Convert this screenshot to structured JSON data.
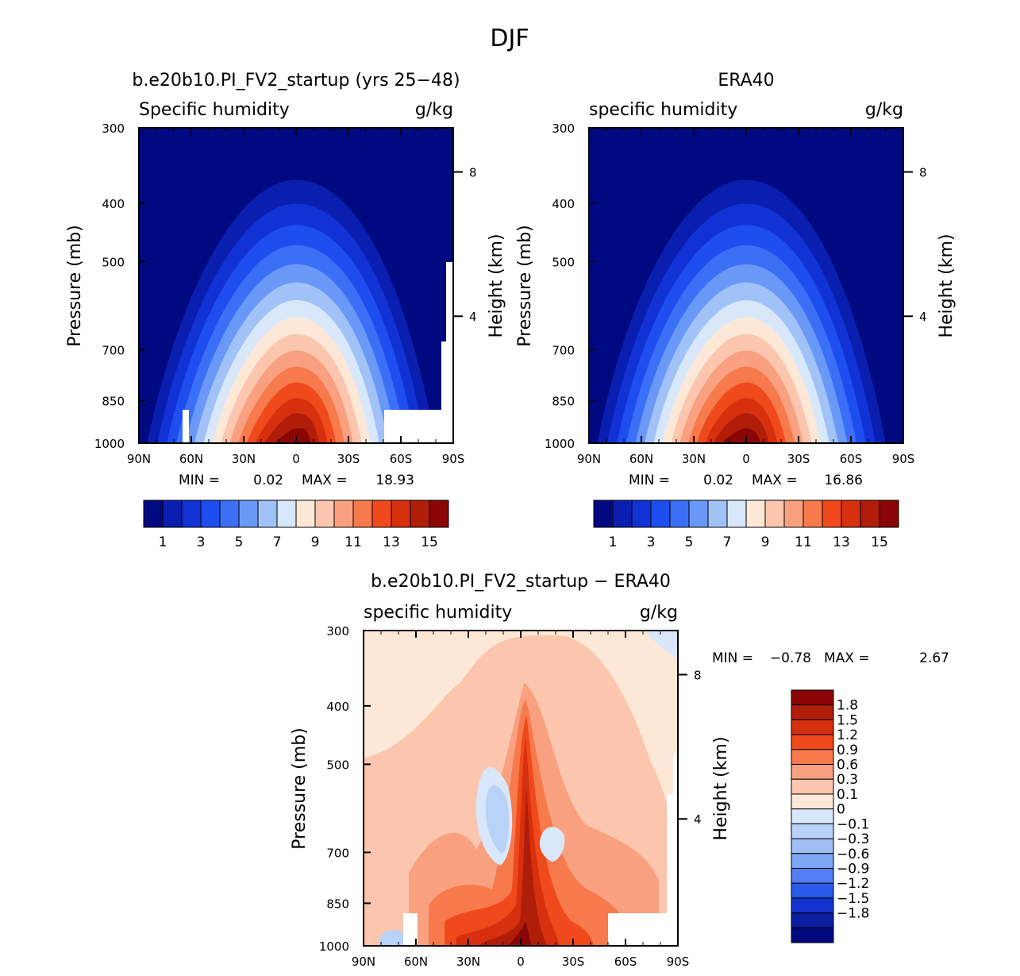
{
  "figure": {
    "title": "DJF"
  },
  "colors": {
    "humidity_scale": [
      "#000a80",
      "#0a1fb0",
      "#1133d6",
      "#1f4ef0",
      "#3b6ff5",
      "#6a98f7",
      "#a1c2f7",
      "#d8e8fa",
      "#fde8d8",
      "#fbc6ad",
      "#f8a07f",
      "#f77a4c",
      "#f04a1c",
      "#d6300e",
      "#b01e0a",
      "#8a0606"
    ],
    "diff_scale": [
      "#8a0606",
      "#b01e0a",
      "#d6300e",
      "#f04a1c",
      "#f77a4c",
      "#f8a07f",
      "#fbc6ad",
      "#fde8d8",
      "#d8e8fa",
      "#b9d2f8",
      "#9fbef7",
      "#7ea7f6",
      "#4f7ff2",
      "#2c5ae8",
      "#1433cc",
      "#0a1fa0",
      "#000a80"
    ]
  },
  "chart_data": [
    {
      "type": "contour",
      "title": "b.e20b10.PI_FV2_startup (yrs 25-48)",
      "variable_label": "Specific humidity",
      "units": "g/kg",
      "ylabel": "Pressure (mb)",
      "ylabel_right": "Height (km)",
      "x_ticks": [
        "90N",
        "60N",
        "30N",
        "0",
        "30S",
        "60S",
        "90S"
      ],
      "y_ticks": [
        "300",
        "400",
        "500",
        "700",
        "850",
        "1000"
      ],
      "y_ticks_right": [
        "8",
        "4"
      ],
      "min_label": "MIN =",
      "min_value": "0.02",
      "max_label": "MAX =",
      "max_value": "18.93",
      "colorbar_labels": [
        "1",
        "3",
        "5",
        "7",
        "9",
        "11",
        "13",
        "15"
      ],
      "levels": [
        1,
        2,
        3,
        4,
        5,
        6,
        7,
        8,
        9,
        10,
        11,
        12,
        13,
        14,
        15
      ],
      "peak_lat": 0,
      "peak_value": 18.93
    },
    {
      "type": "contour",
      "title": "ERA40",
      "variable_label": "specific humidity",
      "units": "g/kg",
      "ylabel": "Pressure (mb)",
      "ylabel_right": "Height (km)",
      "x_ticks": [
        "90N",
        "60N",
        "30N",
        "0",
        "30S",
        "60S",
        "90S"
      ],
      "y_ticks": [
        "300",
        "400",
        "500",
        "700",
        "850",
        "1000"
      ],
      "y_ticks_right": [
        "8",
        "4"
      ],
      "min_label": "MIN =",
      "min_value": "0.02",
      "max_label": "MAX =",
      "max_value": "16.86",
      "colorbar_labels": [
        "1",
        "3",
        "5",
        "7",
        "9",
        "11",
        "13",
        "15"
      ],
      "levels": [
        1,
        2,
        3,
        4,
        5,
        6,
        7,
        8,
        9,
        10,
        11,
        12,
        13,
        14,
        15
      ],
      "peak_lat": 0,
      "peak_value": 16.86
    },
    {
      "type": "contour",
      "title": "b.e20b10.PI_FV2_startup - ERA40",
      "variable_label": "specific humidity",
      "units": "g/kg",
      "ylabel": "Pressure (mb)",
      "ylabel_right": "Height (km)",
      "x_ticks": [
        "90N",
        "60N",
        "30N",
        "0",
        "30S",
        "60S",
        "90S"
      ],
      "y_ticks": [
        "300",
        "400",
        "500",
        "700",
        "850",
        "1000"
      ],
      "y_ticks_right": [
        "8",
        "4"
      ],
      "min_label": "MIN =",
      "min_value": "-0.78",
      "max_label": "MAX =",
      "max_value": "2.67",
      "colorbar_labels": [
        "1.8",
        "1.5",
        "1.2",
        "0.9",
        "0.6",
        "0.3",
        "0.1",
        "0",
        "-0.1",
        "-0.3",
        "-0.6",
        "-0.9",
        "-1.2",
        "-1.5",
        "-1.8"
      ],
      "levels": [
        1.8,
        1.5,
        1.2,
        0.9,
        0.6,
        0.3,
        0.1,
        0,
        -0.1,
        -0.3,
        -0.6,
        -0.9,
        -1.2,
        -1.5,
        -1.8
      ]
    }
  ]
}
